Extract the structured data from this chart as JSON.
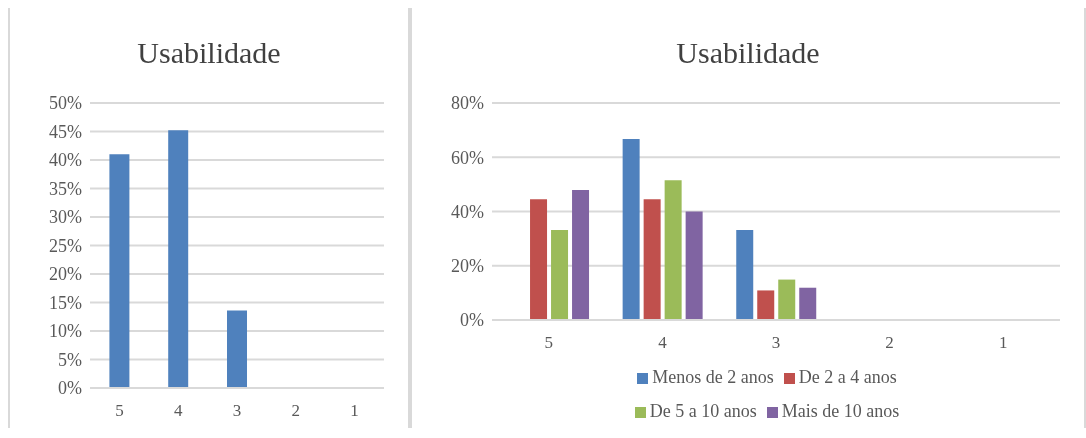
{
  "chart_data": [
    {
      "type": "bar",
      "title": "Usabilidade",
      "categories": [
        "5",
        "4",
        "3",
        "2",
        "1"
      ],
      "values": [
        41,
        45.2,
        13.6,
        0,
        0
      ],
      "color": "#4f81bd",
      "ylim": [
        0,
        50
      ],
      "yticks": [
        {
          "value": 0,
          "label": "0%"
        },
        {
          "value": 5,
          "label": "5%"
        },
        {
          "value": 10,
          "label": "10%"
        },
        {
          "value": 15,
          "label": "15%"
        },
        {
          "value": 20,
          "label": "20%"
        },
        {
          "value": 25,
          "label": "25%"
        },
        {
          "value": 30,
          "label": "30%"
        },
        {
          "value": 35,
          "label": "35%"
        },
        {
          "value": 40,
          "label": "40%"
        },
        {
          "value": 45,
          "label": "45%"
        },
        {
          "value": 50,
          "label": "50%"
        }
      ],
      "grid": "y",
      "legend": false
    },
    {
      "type": "bar",
      "title": "Usabilidade",
      "categories": [
        "5",
        "4",
        "3",
        "2",
        "1"
      ],
      "series": [
        {
          "name": "Menos de 2 anos",
          "color": "#4f81bd",
          "values": [
            0,
            66.7,
            33.2,
            0,
            0
          ]
        },
        {
          "name": "De 2 a 4 anos",
          "color": "#c0504d",
          "values": [
            44.5,
            44.5,
            10.9,
            0,
            0
          ]
        },
        {
          "name": "De 5 a 10 anos",
          "color": "#9bbb59",
          "values": [
            33.2,
            51.5,
            14.9,
            0,
            0
          ]
        },
        {
          "name": "Mais de 10 anos",
          "color": "#8064a2",
          "values": [
            47.9,
            40,
            11.9,
            0,
            0
          ]
        }
      ],
      "ylim": [
        0,
        80
      ],
      "yticks": [
        {
          "value": 0,
          "label": "0%"
        },
        {
          "value": 20,
          "label": "20%"
        },
        {
          "value": 40,
          "label": "40%"
        },
        {
          "value": 60,
          "label": "60%"
        },
        {
          "value": 80,
          "label": "80%"
        }
      ],
      "grid": "y",
      "legend": "bottom"
    }
  ]
}
